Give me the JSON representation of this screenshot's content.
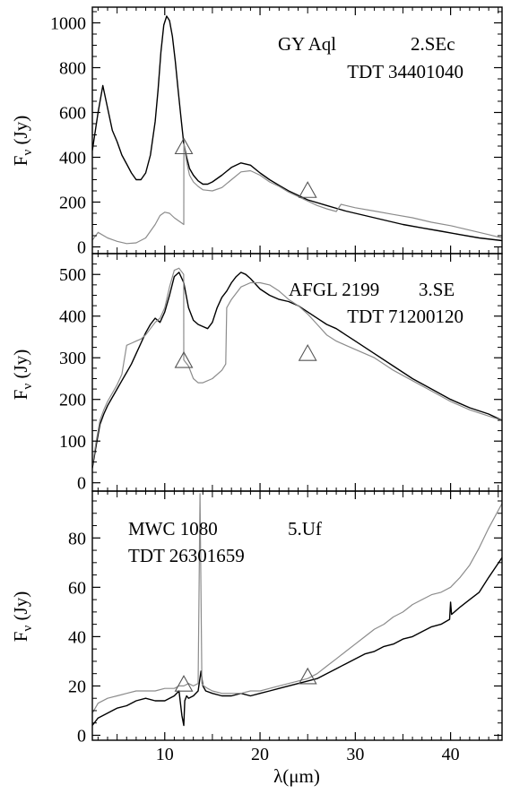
{
  "xlabel": "λ(μm)",
  "colors": {
    "black_series": "#000000",
    "gray_series": "#8c8c8c",
    "marker": "#555555"
  },
  "chart_data": [
    {
      "type": "line",
      "panel": "top",
      "annotations": [
        "GY Aql",
        "2.SEc",
        "TDT 34401040"
      ],
      "ylabel": "F_ν (Jy)",
      "xlim": [
        2.4,
        45.4
      ],
      "ylim": [
        -30,
        1070
      ],
      "yticks": [
        0,
        200,
        400,
        600,
        800,
        1000
      ],
      "xticks": [
        10,
        20,
        30,
        40
      ],
      "series": [
        {
          "color": "black",
          "x": [
            2.4,
            3.0,
            3.5,
            4.0,
            4.5,
            5.0,
            5.5,
            6.0,
            6.5,
            7.0,
            7.5,
            8.0,
            8.5,
            9.0,
            9.3,
            9.6,
            9.9,
            10.2,
            10.5,
            10.8,
            11.1,
            11.4,
            11.7,
            12.0,
            12.3,
            12.6,
            13.0,
            13.5,
            14.0,
            14.5,
            15.0,
            16.0,
            17.0,
            18.0,
            19.0,
            20.0,
            21.0,
            22.0,
            23.0,
            24.0,
            25.0,
            27.0,
            29.0,
            31.0,
            33.0,
            35.0,
            37.0,
            39.0,
            41.0,
            43.0,
            45.4
          ],
          "y": [
            430,
            600,
            720,
            620,
            520,
            470,
            410,
            370,
            330,
            300,
            300,
            330,
            410,
            560,
            700,
            870,
            990,
            1030,
            1010,
            940,
            830,
            700,
            580,
            460,
            400,
            350,
            320,
            295,
            280,
            280,
            290,
            320,
            355,
            375,
            365,
            330,
            300,
            275,
            250,
            230,
            210,
            185,
            160,
            140,
            120,
            100,
            85,
            70,
            55,
            40,
            28
          ]
        },
        {
          "color": "gray",
          "x": [
            2.4,
            3.0,
            4.0,
            5.0,
            6.0,
            7.0,
            8.0,
            9.0,
            9.5,
            10.0,
            10.5,
            11.0,
            11.5,
            12.0,
            12.01,
            12.3,
            12.6,
            13.0,
            13.5,
            14.0,
            15.0,
            16.0,
            17.0,
            18.0,
            19.0,
            20.0,
            21.0,
            22.0,
            23.0,
            24.0,
            25.0,
            26.0,
            27.0,
            28.0,
            28.5,
            29.0,
            30.0,
            32.0,
            34.0,
            36.0,
            38.0,
            40.0,
            42.0,
            44.0,
            45.4
          ],
          "y": [
            30,
            65,
            40,
            25,
            15,
            18,
            40,
            100,
            140,
            155,
            150,
            130,
            115,
            100,
            460,
            380,
            320,
            290,
            270,
            255,
            250,
            265,
            300,
            335,
            340,
            320,
            290,
            270,
            245,
            225,
            205,
            185,
            170,
            158,
            190,
            185,
            175,
            160,
            145,
            130,
            110,
            95,
            75,
            55,
            40
          ]
        }
      ],
      "markers": [
        {
          "x": 12.0,
          "y": 450
        },
        {
          "x": 25.0,
          "y": 255
        }
      ]
    },
    {
      "type": "line",
      "panel": "middle",
      "annotations": [
        "AFGL 2199",
        "3.SE",
        "TDT 71200120"
      ],
      "ylabel": "F_ν (Jy)",
      "xlim": [
        2.4,
        45.4
      ],
      "ylim": [
        -20,
        550
      ],
      "yticks": [
        0,
        100,
        200,
        300,
        400,
        500
      ],
      "xticks": [
        10,
        20,
        30,
        40
      ],
      "series": [
        {
          "color": "black",
          "x": [
            2.4,
            2.8,
            3.2,
            3.6,
            4.0,
            4.5,
            5.0,
            5.5,
            6.0,
            6.5,
            7.0,
            7.5,
            8.0,
            8.5,
            9.0,
            9.5,
            10.0,
            10.5,
            11.0,
            11.5,
            12.0,
            12.5,
            13.0,
            13.5,
            14.0,
            14.5,
            15.0,
            15.5,
            16.0,
            16.5,
            17.0,
            17.5,
            18.0,
            18.5,
            19.0,
            20.0,
            21.0,
            22.0,
            23.0,
            24.0,
            25.0,
            26.0,
            27.0,
            28.0,
            29.0,
            30.0,
            32.0,
            34.0,
            36.0,
            38.0,
            40.0,
            42.0,
            44.0,
            45.4
          ],
          "y": [
            35,
            90,
            140,
            165,
            185,
            205,
            225,
            245,
            265,
            285,
            310,
            335,
            360,
            380,
            395,
            385,
            410,
            450,
            495,
            505,
            480,
            420,
            390,
            380,
            375,
            370,
            385,
            420,
            445,
            460,
            480,
            495,
            505,
            500,
            490,
            465,
            450,
            440,
            435,
            425,
            410,
            395,
            380,
            370,
            355,
            340,
            310,
            280,
            250,
            225,
            200,
            180,
            165,
            150
          ]
        },
        {
          "color": "gray",
          "x": [
            2.4,
            2.8,
            3.2,
            3.6,
            4.0,
            4.5,
            5.0,
            5.5,
            6.0,
            6.5,
            7.0,
            7.5,
            8.0,
            8.5,
            9.0,
            9.5,
            10.0,
            10.5,
            11.0,
            11.5,
            11.99,
            12.0,
            12.5,
            13.0,
            13.5,
            14.0,
            15.0,
            16.0,
            16.4,
            16.5,
            17.0,
            18.0,
            19.0,
            20.0,
            21.0,
            22.0,
            23.0,
            24.0,
            25.0,
            26.0,
            27.0,
            28.0,
            29.0,
            30.0,
            32.0,
            34.0,
            36.0,
            38.0,
            40.0,
            42.0,
            44.0,
            45.4
          ],
          "y": [
            40,
            100,
            150,
            175,
            195,
            215,
            235,
            260,
            330,
            335,
            340,
            345,
            355,
            370,
            385,
            395,
            420,
            470,
            510,
            515,
            500,
            295,
            280,
            250,
            240,
            240,
            250,
            270,
            285,
            420,
            440,
            470,
            480,
            480,
            475,
            460,
            440,
            425,
            405,
            380,
            355,
            340,
            330,
            320,
            300,
            270,
            245,
            220,
            195,
            175,
            160,
            150
          ]
        }
      ],
      "markers": [
        {
          "x": 12.0,
          "y": 295
        },
        {
          "x": 25.0,
          "y": 312
        }
      ]
    },
    {
      "type": "line",
      "panel": "bottom",
      "annotations": [
        "MWC 1080",
        "5.Uf",
        "TDT 26301659"
      ],
      "ylabel": "F_ν (Jy)",
      "xlim": [
        2.4,
        45.4
      ],
      "ylim": [
        -2,
        99
      ],
      "yticks": [
        0,
        20,
        40,
        60,
        80
      ],
      "xticks": [
        10,
        20,
        30,
        40
      ],
      "series": [
        {
          "color": "black",
          "x": [
            2.4,
            3.0,
            4.0,
            5.0,
            6.0,
            7.0,
            8.0,
            9.0,
            10.0,
            11.0,
            11.5,
            11.8,
            12.0,
            12.1,
            12.3,
            12.5,
            13.0,
            13.5,
            13.8,
            14.0,
            14.3,
            15.0,
            16.0,
            17.0,
            18.0,
            19.0,
            20.0,
            21.0,
            22.0,
            23.0,
            24.0,
            25.0,
            26.0,
            27.0,
            28.0,
            29.0,
            30.0,
            31.0,
            32.0,
            33.0,
            34.0,
            35.0,
            36.0,
            37.0,
            38.0,
            39.0,
            39.9,
            40.0,
            40.1,
            41.0,
            42.0,
            43.0,
            44.0,
            45.4
          ],
          "y": [
            4,
            7,
            9,
            11,
            12,
            14,
            15,
            14,
            14,
            16,
            18,
            8,
            4,
            14,
            16,
            15,
            16,
            18,
            26,
            20,
            18,
            17,
            16,
            16,
            17,
            16,
            17,
            18,
            19,
            20,
            21,
            22,
            23,
            25,
            27,
            29,
            31,
            33,
            34,
            36,
            37,
            39,
            40,
            42,
            44,
            45,
            47,
            54,
            49,
            52,
            55,
            58,
            64,
            72
          ]
        },
        {
          "color": "gray",
          "x": [
            2.4,
            3.0,
            4.0,
            5.0,
            6.0,
            7.0,
            8.0,
            9.0,
            10.0,
            11.0,
            11.5,
            12.0,
            12.5,
            13.0,
            13.5,
            13.7,
            13.9,
            14.1,
            14.5,
            15.0,
            16.0,
            17.0,
            18.0,
            19.0,
            20.0,
            21.0,
            22.0,
            23.0,
            24.0,
            25.0,
            26.0,
            27.0,
            28.0,
            29.0,
            30.0,
            31.0,
            32.0,
            33.0,
            34.0,
            35.0,
            36.0,
            37.0,
            38.0,
            39.0,
            40.0,
            41.0,
            42.0,
            43.0,
            44.0,
            45.4
          ],
          "y": [
            9,
            13,
            15,
            16,
            17,
            18,
            18,
            18,
            19,
            19,
            20,
            20,
            21,
            20,
            21,
            98,
            21,
            20,
            19,
            18,
            17,
            17,
            17,
            18,
            18,
            19,
            20,
            21,
            22,
            23,
            25,
            28,
            31,
            34,
            37,
            40,
            43,
            45,
            48,
            50,
            53,
            55,
            57,
            58,
            60,
            64,
            69,
            76,
            84,
            94
          ]
        }
      ],
      "markers": [
        {
          "x": 12.0,
          "y": 21
        },
        {
          "x": 25.0,
          "y": 24
        }
      ]
    }
  ]
}
